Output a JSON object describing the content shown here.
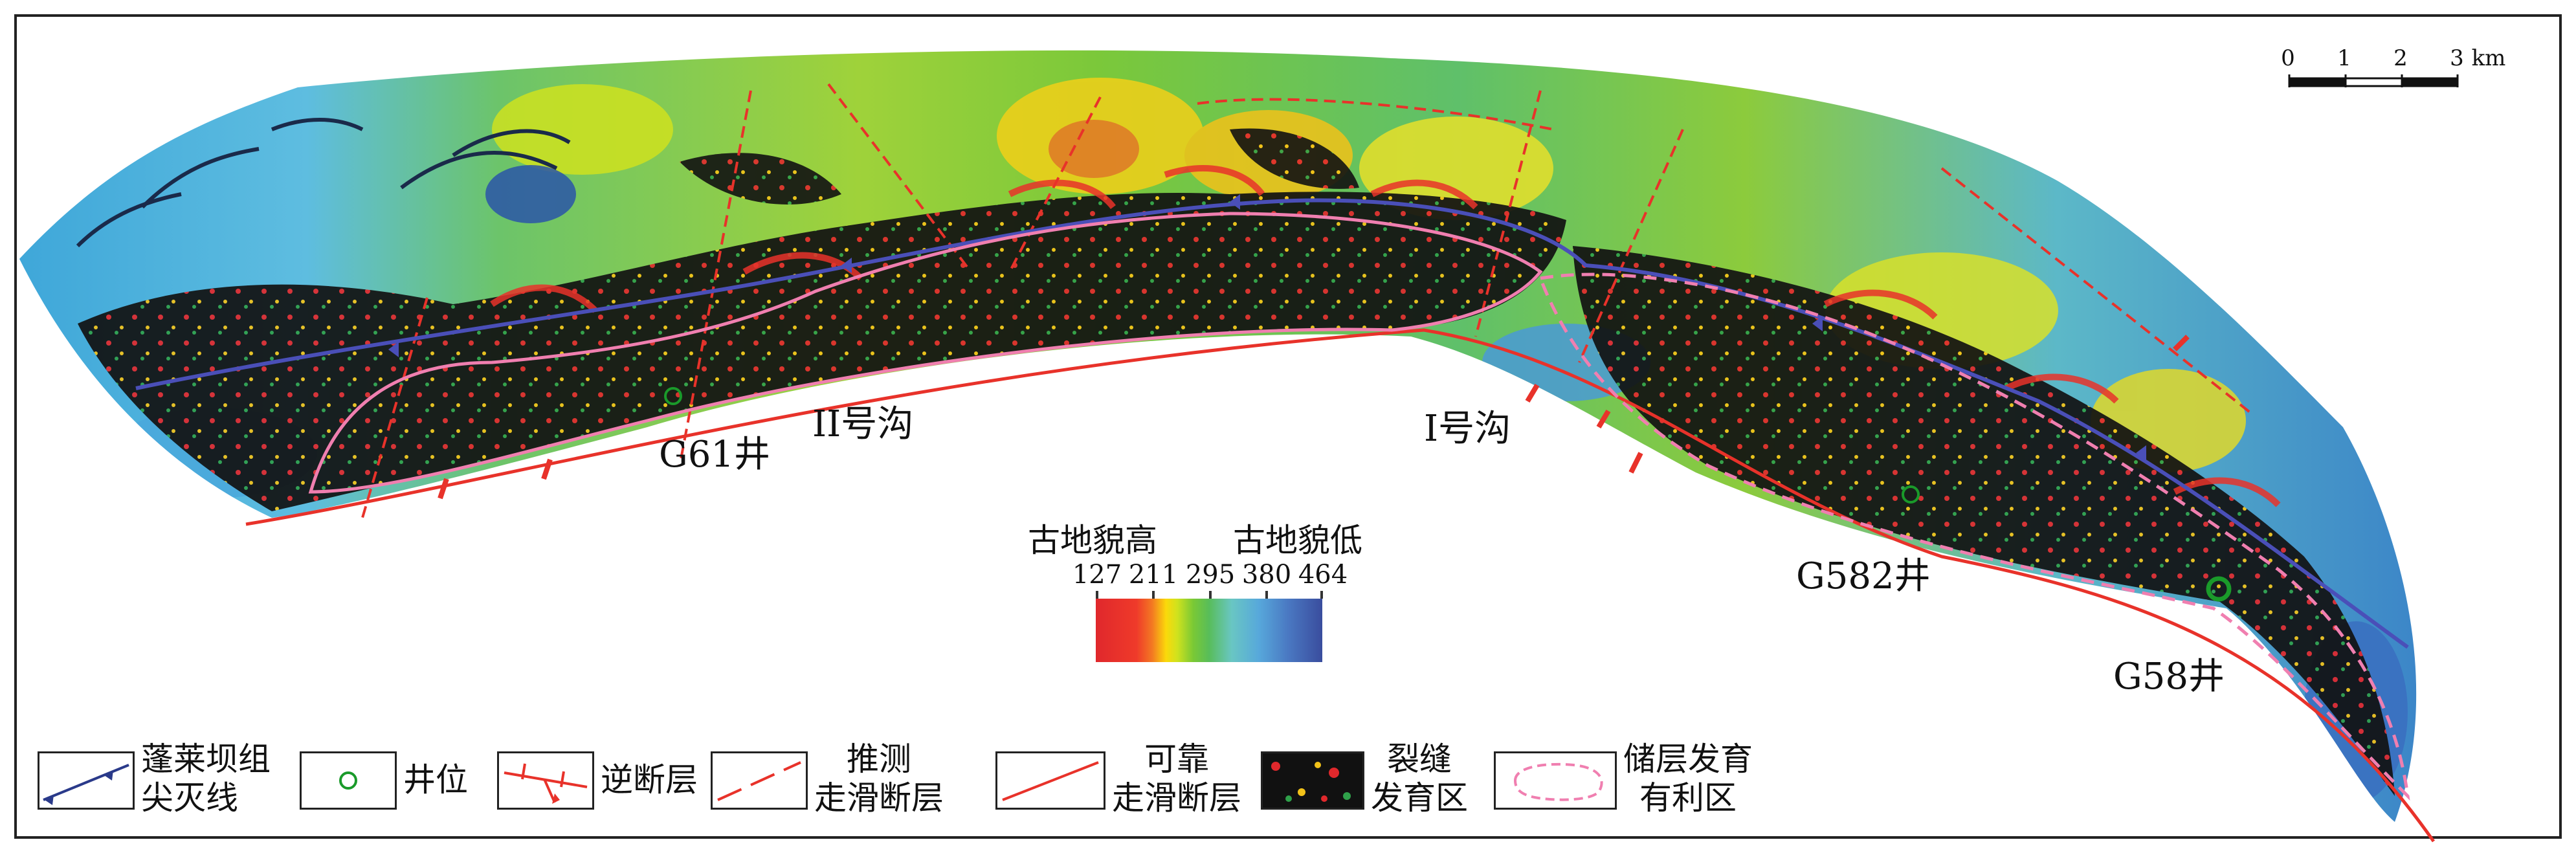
{
  "labels": {
    "g61": "G61井",
    "gully2": "II号沟",
    "gully1": "I号沟",
    "g582": "G582井",
    "g58": "G58井"
  },
  "scale_bar": {
    "ticks": [
      "0",
      "1",
      "2",
      "3"
    ],
    "unit": "km"
  },
  "colorbar": {
    "title_high": "古地貌高",
    "title_low": "古地貌低",
    "ticks": [
      "127",
      "211",
      "295",
      "380",
      "464"
    ]
  },
  "legend": [
    {
      "symbol": "pinchout-line",
      "line1": "蓬莱坝组",
      "line2": "尖灭线"
    },
    {
      "symbol": "well",
      "line1": "井位",
      "line2": ""
    },
    {
      "symbol": "reverse-fault",
      "line1": "逆断层",
      "line2": ""
    },
    {
      "symbol": "inferred-fault",
      "line1": "推测",
      "line2": "走滑断层"
    },
    {
      "symbol": "reliable-fault",
      "line1": "可靠",
      "line2": "走滑断层"
    },
    {
      "symbol": "fracture-zone",
      "line1": "裂缝",
      "line2": "发育区"
    },
    {
      "symbol": "reservoir-zone",
      "line1": "储层发育",
      "line2": "有利区"
    }
  ],
  "colors": {
    "terrain_high": "#e0282c",
    "terrain_mid": "#7ac935",
    "terrain_low": "#3a4d9e",
    "fracture": "#111111",
    "fault": "#e8322a",
    "pinchout": "#4a4fb8",
    "reservoir_boundary": "#f07fb0",
    "well": "#1a9a2a"
  }
}
